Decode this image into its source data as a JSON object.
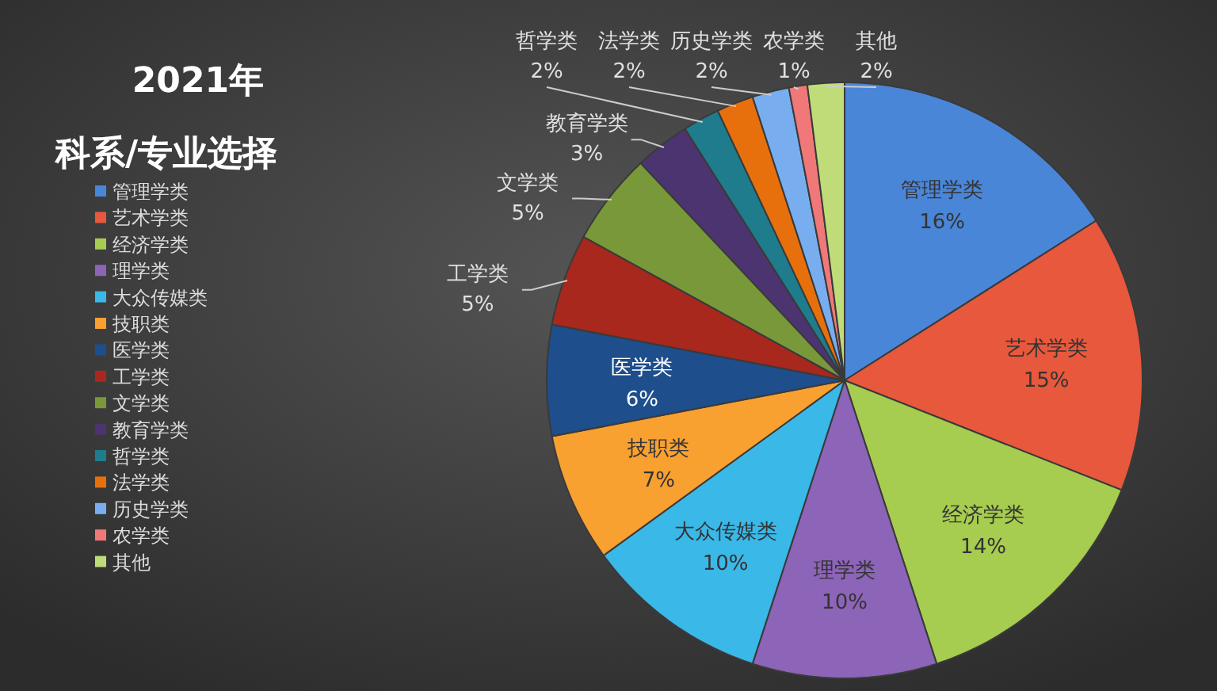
{
  "chart_data": {
    "type": "pie",
    "title": "2021年",
    "subtitle": "科系/专业选择",
    "categories": [
      "管理学类",
      "艺术学类",
      "经济学类",
      "理学类",
      "大众传媒类",
      "技职类",
      "医学类",
      "工学类",
      "文学类",
      "教育学类",
      "哲学类",
      "法学类",
      "历史学类",
      "农学类",
      "其他"
    ],
    "values": [
      16,
      15,
      14,
      10,
      10,
      7,
      6,
      5,
      5,
      3,
      2,
      2,
      2,
      1,
      2
    ],
    "colors": [
      "#4a86d8",
      "#e8583c",
      "#a6cc50",
      "#8c64b8",
      "#3ab8e8",
      "#f8a030",
      "#1e4e8c",
      "#a8281e",
      "#78983a",
      "#4c3470",
      "#1e7c8c",
      "#e8700c",
      "#78aef0",
      "#f07878",
      "#c0dc78"
    ],
    "value_labels": [
      "16%",
      "15%",
      "14%",
      "10%",
      "10%",
      "7%",
      "6%",
      "5%",
      "5%",
      "3%",
      "2%",
      "2%",
      "2%",
      "1%",
      "2%"
    ],
    "legend": "left"
  }
}
